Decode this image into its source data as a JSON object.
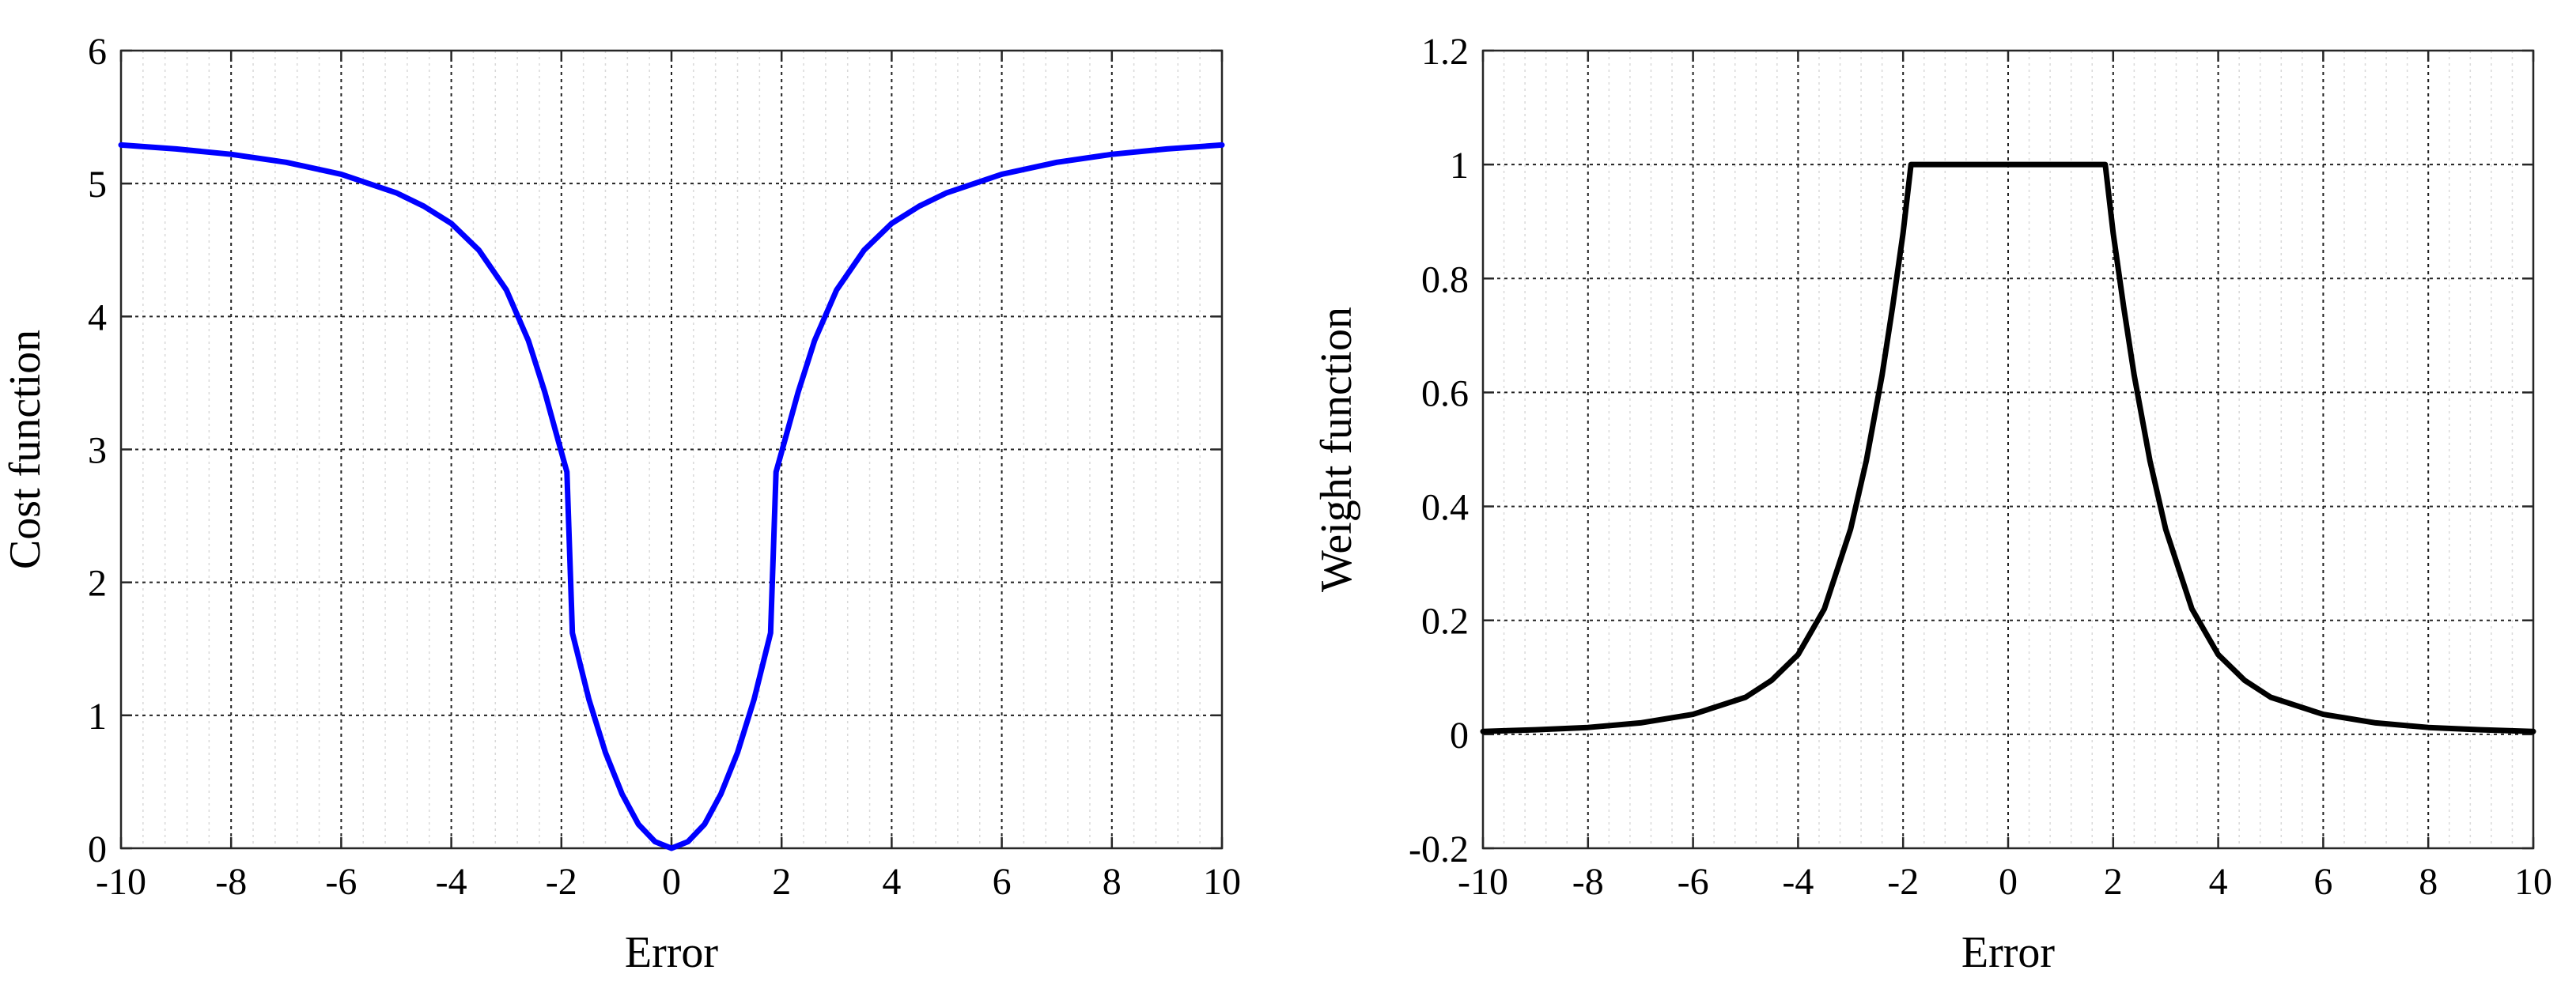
{
  "chart_data": [
    {
      "type": "line",
      "title": "",
      "xlabel": "Error",
      "ylabel": "Cost function",
      "xlim": [
        -10,
        10
      ],
      "ylim": [
        0,
        6
      ],
      "xticks": [
        -10,
        -8,
        -6,
        -4,
        -2,
        0,
        2,
        4,
        6,
        8,
        10
      ],
      "yticks": [
        0,
        1,
        2,
        3,
        4,
        5,
        6
      ],
      "xtick_labels": [
        "-10",
        "-8",
        "-6",
        "-4",
        "-2",
        "0",
        "2",
        "4",
        "6",
        "8",
        "10"
      ],
      "ytick_labels": [
        "0",
        "1",
        "2",
        "3",
        "4",
        "5",
        "6"
      ],
      "grid": true,
      "minor_grid": true,
      "line_color": "#0000ff",
      "series": [
        {
          "x": [
            -10,
            -9,
            -8,
            -7,
            -6,
            -5,
            -4.5,
            -4,
            -3.5,
            -3,
            -2.6,
            -2.3,
            -2.1,
            -1.9,
            -1.8,
            -1.5,
            -1.2,
            -0.9,
            -0.6,
            -0.3,
            0,
            0.3,
            0.6,
            0.9,
            1.2,
            1.5,
            1.8,
            1.9,
            2.1,
            2.3,
            2.6,
            3,
            3.5,
            4,
            4.5,
            5,
            6,
            7,
            8,
            9,
            10
          ],
          "y": [
            5.29,
            5.26,
            5.22,
            5.16,
            5.07,
            4.93,
            4.83,
            4.7,
            4.5,
            4.2,
            3.82,
            3.43,
            3.13,
            2.83,
            1.62,
            1.12,
            0.72,
            0.41,
            0.18,
            0.05,
            0,
            0.05,
            0.18,
            0.41,
            0.72,
            1.12,
            1.62,
            2.83,
            3.13,
            3.43,
            3.82,
            4.2,
            4.5,
            4.7,
            4.83,
            4.93,
            5.07,
            5.16,
            5.22,
            5.26,
            5.29
          ]
        }
      ]
    },
    {
      "type": "line",
      "title": "",
      "xlabel": "Error",
      "ylabel": "Weight function",
      "xlim": [
        -10,
        10
      ],
      "ylim": [
        -0.2,
        1.2
      ],
      "xticks": [
        -10,
        -8,
        -6,
        -4,
        -2,
        0,
        2,
        4,
        6,
        8,
        10
      ],
      "yticks": [
        -0.2,
        0,
        0.2,
        0.4,
        0.6,
        0.8,
        1,
        1.2
      ],
      "xtick_labels": [
        "-10",
        "-8",
        "-6",
        "-4",
        "-2",
        "0",
        "2",
        "4",
        "6",
        "8",
        "10"
      ],
      "ytick_labels": [
        "-0.2",
        "0",
        "0.2",
        "0.4",
        "0.6",
        "0.8",
        "1",
        "1.2"
      ],
      "grid": true,
      "minor_grid": true,
      "line_color": "#000000",
      "series": [
        {
          "x": [
            -10,
            -9,
            -8,
            -7,
            -6,
            -5,
            -4.5,
            -4,
            -3.5,
            -3,
            -2.7,
            -2.4,
            -2.2,
            -2,
            -1.85,
            1.85,
            2,
            2.2,
            2.4,
            2.7,
            3,
            3.5,
            4,
            4.5,
            5,
            6,
            7,
            8,
            9,
            10
          ],
          "y": [
            0.005,
            0.008,
            0.012,
            0.02,
            0.035,
            0.065,
            0.095,
            0.14,
            0.22,
            0.36,
            0.48,
            0.63,
            0.75,
            0.88,
            1.0,
            1.0,
            0.88,
            0.75,
            0.63,
            0.48,
            0.36,
            0.22,
            0.14,
            0.095,
            0.065,
            0.035,
            0.02,
            0.012,
            0.008,
            0.005
          ]
        }
      ]
    }
  ]
}
